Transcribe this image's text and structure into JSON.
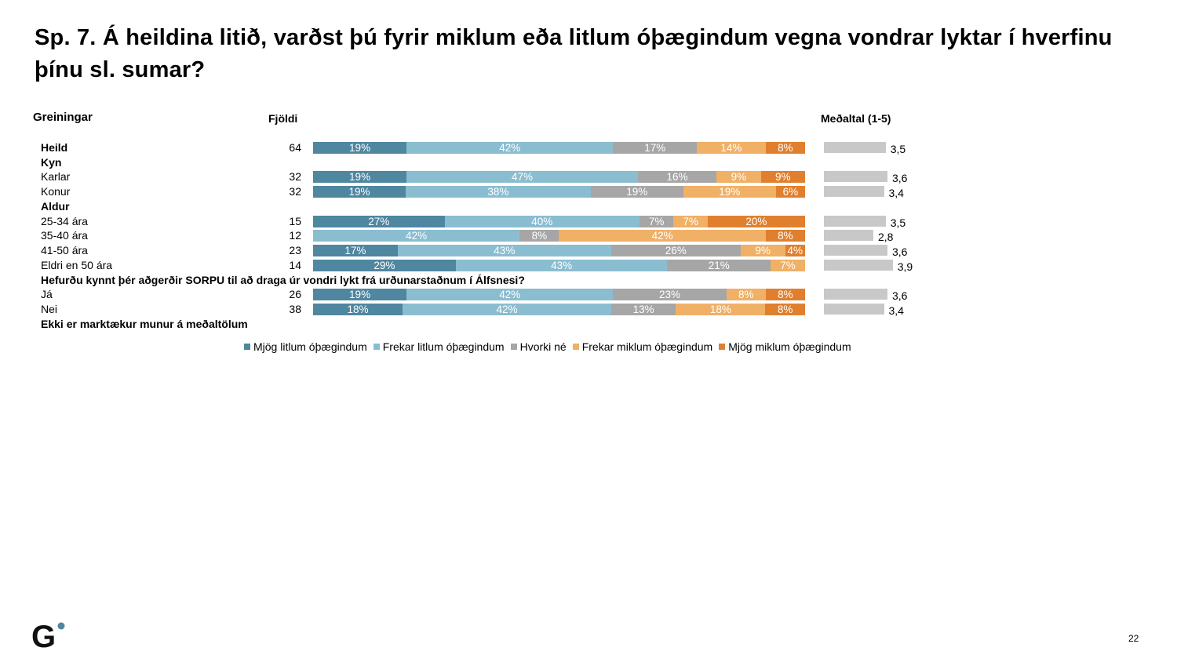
{
  "title": "Sp. 7. Á heildina litið, varðst þú fyrir miklum eða litlum óþægindum vegna vondrar lyktar í hverfinu þínu sl. sumar?",
  "page_number": "22",
  "logo_text": "G",
  "chart_data": {
    "type": "bar",
    "orientation": "horizontal-stacked-100",
    "headers": {
      "group": "Greiningar",
      "count": "Fjöldi",
      "mean": "Meðaltal (1-5)"
    },
    "series": [
      {
        "name": "Mjög litlum óþægindum",
        "color": "#4f86a0"
      },
      {
        "name": "Frekar litlum óþægindum",
        "color": "#8bbdd0"
      },
      {
        "name": "Hvorki né",
        "color": "#a6a6a6"
      },
      {
        "name": "Frekar miklum óþægindum",
        "color": "#f0b066"
      },
      {
        "name": "Mjög miklum óþægindum",
        "color": "#e0802e"
      }
    ],
    "mean_range": [
      1,
      5
    ],
    "rows": [
      {
        "type": "data",
        "label": "Heild",
        "bold": true,
        "n": "64",
        "values": [
          19,
          42,
          17,
          14,
          8
        ],
        "mean": "3,5"
      },
      {
        "type": "header",
        "label": "Kyn"
      },
      {
        "type": "data",
        "label": "Karlar",
        "n": "32",
        "values": [
          19,
          47,
          16,
          9,
          9
        ],
        "mean": "3,6"
      },
      {
        "type": "data",
        "label": "Konur",
        "n": "32",
        "values": [
          19,
          38,
          19,
          19,
          6
        ],
        "mean": "3,4"
      },
      {
        "type": "header",
        "label": "Aldur"
      },
      {
        "type": "data",
        "label": "25-34 ára",
        "n": "15",
        "values": [
          27,
          40,
          7,
          7,
          20
        ],
        "mean": "3,5"
      },
      {
        "type": "data",
        "label": "35-40 ára",
        "n": "12",
        "values": [
          0,
          42,
          8,
          42,
          8
        ],
        "mean": "2,8"
      },
      {
        "type": "data",
        "label": "41-50 ára",
        "n": "23",
        "values": [
          17,
          43,
          26,
          9,
          4
        ],
        "mean": "3,6"
      },
      {
        "type": "data",
        "label": "Eldri en 50 ára",
        "n": "14",
        "values": [
          29,
          43,
          21,
          7,
          0
        ],
        "mean": "3,9"
      },
      {
        "type": "header",
        "label": "Hefurðu kynnt þér aðgerðir SORPU til að draga úr vondri lykt frá urðunarstaðnum í Álfsnesi?"
      },
      {
        "type": "data",
        "label": "Já",
        "n": "26",
        "values": [
          19,
          42,
          23,
          8,
          8
        ],
        "mean": "3,6"
      },
      {
        "type": "data",
        "label": "Nei",
        "n": "38",
        "values": [
          18,
          42,
          13,
          18,
          8
        ],
        "mean": "3,4"
      },
      {
        "type": "header",
        "label": "Ekki er marktækur munur á meðaltölum"
      }
    ]
  }
}
